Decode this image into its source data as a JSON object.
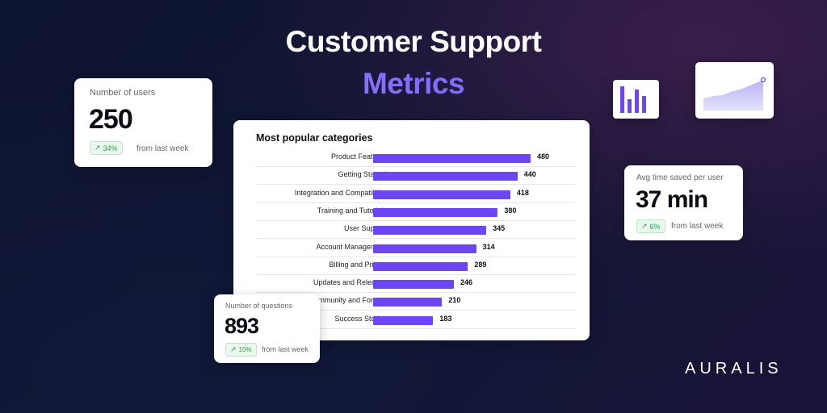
{
  "hero": {
    "title": "Customer Support",
    "subtitle": "Metrics"
  },
  "users_card": {
    "label": "Number of users",
    "value": "250",
    "change": "34%",
    "suffix": "from last week"
  },
  "time_card": {
    "label": "Avg time saved per user",
    "value": "37 min",
    "change": "6%",
    "suffix": "from last week"
  },
  "questions_card": {
    "label": "Number of questions",
    "value": "893",
    "change": "10%",
    "suffix": "from last week"
  },
  "brand": {
    "name": "AURALIS"
  },
  "colors": {
    "accent": "#6c46f5",
    "badge_green": "#2e9a4a",
    "background": "#111633"
  },
  "icons": {
    "bar_chart": "bar-chart-icon",
    "area_chart": "area-chart-icon",
    "trend_up": "trend-up-icon"
  },
  "chart_data": {
    "type": "bar",
    "title": "Most popular categories",
    "orientation": "horizontal",
    "categories": [
      "Product Features",
      "Getting Started",
      "Integration and Compatibility",
      "Training and Tutorials",
      "User Support",
      "Account Management",
      "Billing and Pricing",
      "Updates and Releases",
      "Community and Forums",
      "Success Stories"
    ],
    "values": [
      480,
      440,
      418,
      380,
      345,
      314,
      289,
      246,
      210,
      183
    ],
    "xlim": [
      0,
      480
    ],
    "grid": false
  }
}
